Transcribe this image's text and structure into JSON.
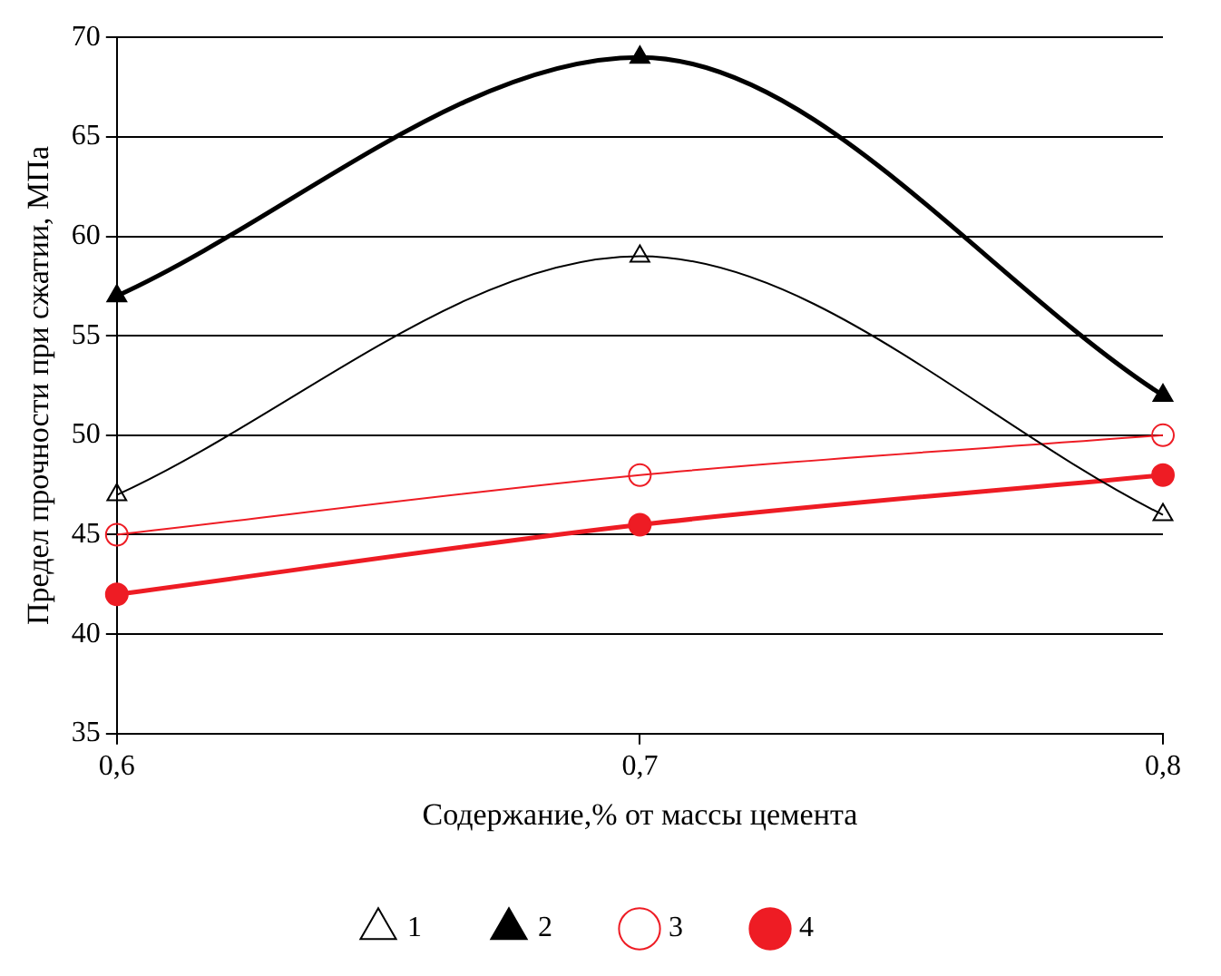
{
  "chart_data": {
    "type": "line",
    "xlabel": "Содержание,% от массы цемента",
    "ylabel": "Предел прочности при сжатии, МПа",
    "x": [
      0.6,
      0.7,
      0.8
    ],
    "series": [
      {
        "name": "1",
        "color": "#000000",
        "marker": "triangle",
        "values": [
          47,
          59,
          46
        ]
      },
      {
        "name": "2",
        "color": "#000000",
        "marker": "triangle",
        "values": [
          57,
          69,
          52
        ]
      },
      {
        "name": "3",
        "color": "#ee1c24",
        "marker": "circle",
        "values": [
          45,
          48,
          50
        ]
      },
      {
        "name": "4",
        "color": "#ee1c24",
        "marker": "circle",
        "values": [
          42,
          45.5,
          48
        ]
      }
    ],
    "xlim": [
      0.6,
      0.8
    ],
    "xticks": [
      {
        "value": 0.6,
        "label": "0,6"
      },
      {
        "value": 0.7,
        "label": "0,7"
      },
      {
        "value": 0.8,
        "label": "0,8"
      }
    ],
    "ylim": [
      35,
      70
    ],
    "yticks": [
      35,
      40,
      45,
      50,
      55,
      60,
      65,
      70
    ],
    "grid": "y",
    "legend": "bottom"
  }
}
